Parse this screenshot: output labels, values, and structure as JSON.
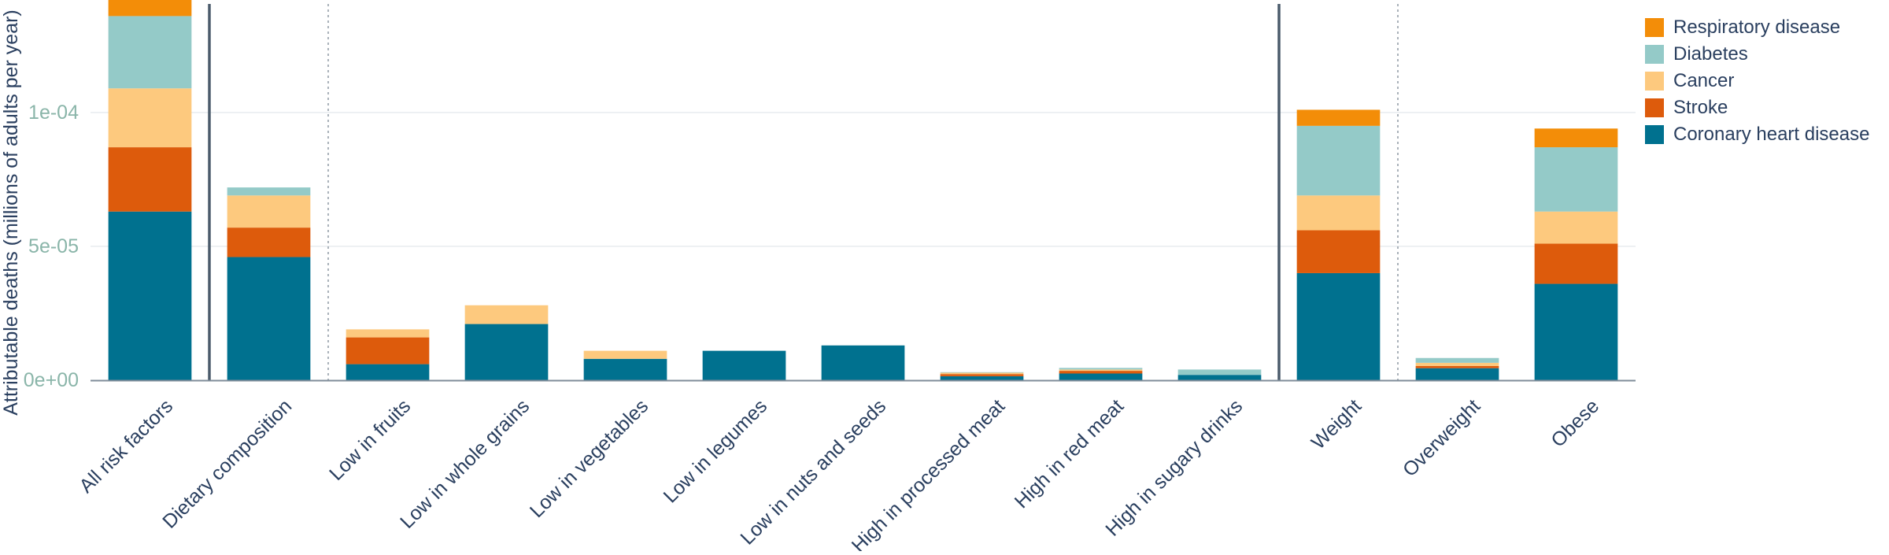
{
  "chart_data": {
    "type": "bar",
    "stacked": true,
    "title": "",
    "xlabel": "",
    "ylabel": "Attributable deaths (millions of adults per year)",
    "ylim": [
      0,
      0.000142
    ],
    "yticks": [
      0,
      5e-05,
      0.0001
    ],
    "ytick_labels": [
      "0e+00",
      "5e-05",
      "1e-04"
    ],
    "grid": true,
    "legend_position": "top-right",
    "categories": [
      "All risk factors",
      "Dietary composition",
      "Low in fruits",
      "Low in whole grains",
      "Low in vegetables",
      "Low in legumes",
      "Low in nuts and seeds",
      "High in processed meat",
      "High in red meat",
      "High in sugary drinks",
      "Weight",
      "Overweight",
      "Obese"
    ],
    "group_separators": [
      {
        "after_index": 0,
        "style": "solid"
      },
      {
        "after_index": 1,
        "style": "dotted"
      },
      {
        "after_index": 9,
        "style": "solid"
      },
      {
        "after_index": 10,
        "style": "dotted"
      }
    ],
    "series": [
      {
        "name": "Coronary heart disease",
        "color": "#00718f",
        "values": [
          6.3e-05,
          4.6e-05,
          6e-06,
          2.1e-05,
          8e-06,
          1.1e-05,
          1.3e-05,
          1.5e-06,
          2.5e-06,
          2e-06,
          4e-05,
          4.5e-06,
          3.6e-05
        ]
      },
      {
        "name": "Stroke",
        "color": "#dd5b0c",
        "values": [
          2.4e-05,
          1.1e-05,
          1e-05,
          0,
          0,
          0,
          0,
          8e-07,
          1e-06,
          0,
          1.6e-05,
          8e-07,
          1.5e-05
        ]
      },
      {
        "name": "Cancer",
        "color": "#fdc97e",
        "values": [
          2.2e-05,
          1.2e-05,
          3e-06,
          7e-06,
          3e-06,
          0,
          0,
          5e-07,
          5e-07,
          0,
          1.3e-05,
          1.2e-06,
          1.2e-05
        ]
      },
      {
        "name": "Diabetes",
        "color": "#94cac8",
        "values": [
          2.7e-05,
          3e-06,
          0,
          0,
          0,
          0,
          0,
          2e-07,
          6e-07,
          2e-06,
          2.6e-05,
          1.8e-06,
          2.4e-05
        ]
      },
      {
        "name": "Respiratory disease",
        "color": "#f38d08",
        "values": [
          6e-06,
          0,
          0,
          0,
          0,
          0,
          0,
          0,
          0,
          0,
          6e-06,
          0,
          7e-06
        ]
      }
    ]
  }
}
